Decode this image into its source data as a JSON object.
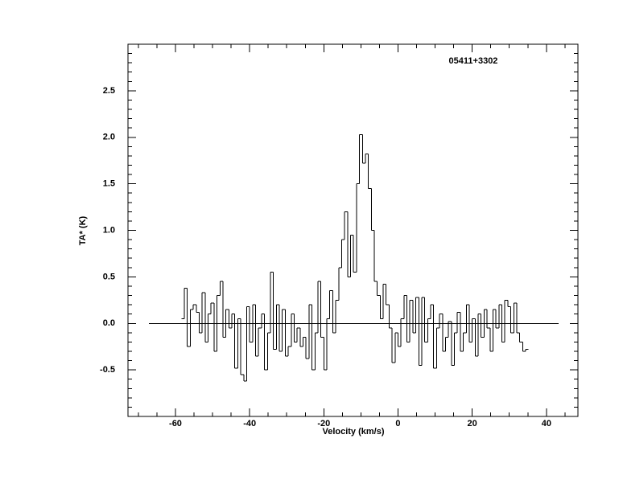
{
  "chart_data": {
    "type": "histogram",
    "annotation": "05411+3302",
    "xlabel": "Velocity (km/s)",
    "ylabel": "TA* (K)",
    "xlim": [
      -72.8,
      48.5
    ],
    "ylim": [
      -1.0,
      3.0
    ],
    "xticks": [
      -60,
      -40,
      -20,
      0,
      20,
      40
    ],
    "yticks": [
      {
        "value": -0.5,
        "label": "-0.5"
      },
      {
        "value": 0,
        "label": "0.0"
      },
      {
        "value": 0.5,
        "label": "0.5"
      },
      {
        "value": 1,
        "label": "1.0"
      },
      {
        "value": 1.5,
        "label": "1.5"
      },
      {
        "value": 2,
        "label": "2.0"
      },
      {
        "value": 2.5,
        "label": "2.5"
      }
    ],
    "xminor": 5,
    "yminor": 0.1,
    "color": "#000000",
    "baseline": {
      "y": 0,
      "x": [
        -67.2,
        43.3
      ]
    },
    "bins": [
      -58.4,
      -57.6,
      -56.8,
      -56.0,
      -55.2,
      -54.4,
      -53.6,
      -52.8,
      -52.0,
      -51.2,
      -50.4,
      -49.6,
      -48.8,
      -48.0,
      -47.2,
      -46.4,
      -45.6,
      -44.8,
      -44.0,
      -43.2,
      -42.4,
      -41.6,
      -40.8,
      -40.0,
      -39.2,
      -38.4,
      -37.6,
      -36.8,
      -36.0,
      -35.2,
      -34.4,
      -33.6,
      -32.8,
      -32.0,
      -31.2,
      -30.4,
      -29.6,
      -28.8,
      -28.0,
      -27.2,
      -26.4,
      -25.6,
      -24.8,
      -24.0,
      -23.2,
      -22.4,
      -21.6,
      -20.8,
      -20.0,
      -19.2,
      -18.4,
      -17.6,
      -16.8,
      -16.0,
      -15.2,
      -14.4,
      -13.6,
      -12.8,
      -12.0,
      -11.2,
      -10.4,
      -9.6,
      -8.8,
      -8.0,
      -7.2,
      -6.4,
      -5.6,
      -4.8,
      -4.0,
      -3.2,
      -2.4,
      -1.6,
      -0.8,
      0.0,
      0.8,
      1.6,
      2.4,
      3.2,
      4.0,
      4.8,
      5.6,
      6.4,
      7.2,
      8.0,
      8.8,
      9.6,
      10.4,
      11.2,
      12.0,
      12.8,
      13.6,
      14.4,
      15.2,
      16.0,
      16.8,
      17.6,
      18.4,
      19.2,
      20.0,
      20.8,
      21.6,
      22.4,
      23.2,
      24.0,
      24.8,
      25.6,
      26.4,
      27.2,
      28.0,
      28.8,
      29.6,
      30.4,
      31.2,
      32.0,
      32.8,
      33.6,
      34.4,
      35.2
    ],
    "values": [
      0.05,
      0.38,
      -0.25,
      0.15,
      0.2,
      0.12,
      -0.1,
      0.33,
      -0.2,
      0.1,
      0.22,
      -0.3,
      0.3,
      0.45,
      -0.15,
      0.15,
      -0.05,
      0.1,
      -0.48,
      0.05,
      -0.55,
      -0.62,
      0.18,
      -0.2,
      0.2,
      -0.35,
      -0.05,
      0.1,
      -0.5,
      -0.1,
      0.55,
      -0.28,
      0.2,
      -0.3,
      0.15,
      -0.35,
      -0.25,
      0.1,
      -0.2,
      -0.05,
      -0.25,
      -0.15,
      -0.38,
      0.2,
      -0.5,
      -0.1,
      0.45,
      -0.15,
      -0.5,
      0.05,
      0.35,
      -0.1,
      0.25,
      0.6,
      0.9,
      1.2,
      0.5,
      0.95,
      0.55,
      1.5,
      2.03,
      1.72,
      1.82,
      1.45,
      1.0,
      0.45,
      0.3,
      0.05,
      0.42,
      0.2,
      -0.05,
      -0.42,
      -0.1,
      -0.25,
      0.05,
      0.3,
      -0.2,
      0.25,
      -0.1,
      0.28,
      -0.45,
      0.28,
      -0.2,
      0.05,
      0.2,
      -0.48,
      -0.05,
      0.1,
      -0.3,
      -0.15,
      0.02,
      -0.45,
      -0.1,
      0.12,
      -0.3,
      -0.1,
      0.2,
      -0.2,
      0.05,
      -0.35,
      0.1,
      -0.15,
      0.15,
      -0.05,
      -0.3,
      0.15,
      -0.05,
      0.2,
      -0.2,
      0.25,
      0.18,
      -0.1,
      0.22,
      -0.1,
      -0.2,
      -0.3,
      -0.28
    ]
  }
}
